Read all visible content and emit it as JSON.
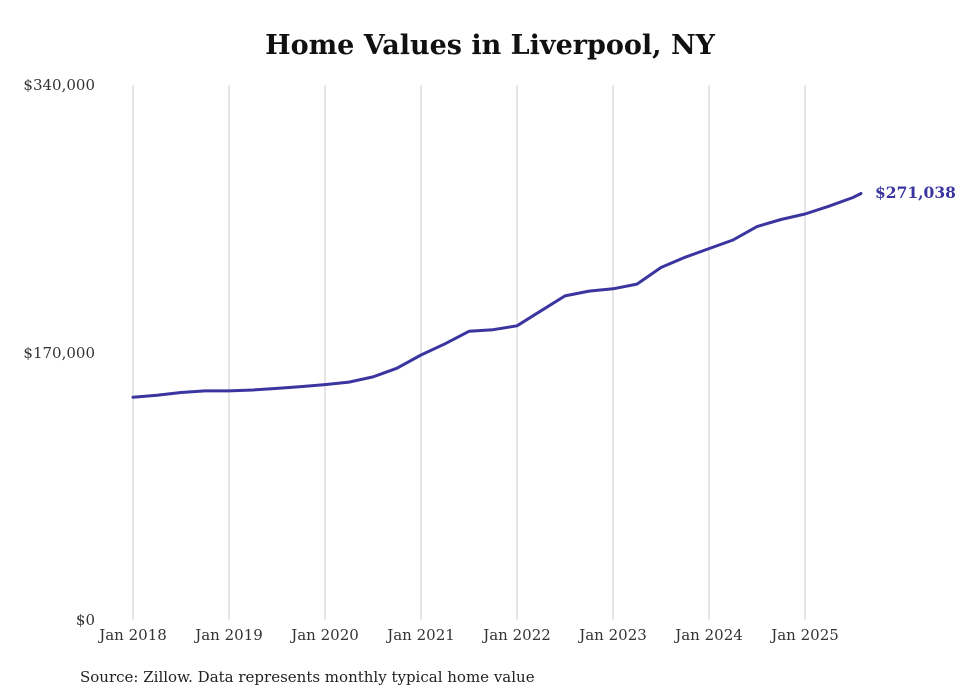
{
  "chart_data": {
    "type": "line",
    "title": "Home Values in Liverpool, NY",
    "series_name": "Monthly typical home value",
    "x": [
      "2018-01",
      "2018-04",
      "2018-07",
      "2018-10",
      "2019-01",
      "2019-04",
      "2019-07",
      "2019-10",
      "2020-01",
      "2020-04",
      "2020-07",
      "2020-10",
      "2021-01",
      "2021-04",
      "2021-07",
      "2021-10",
      "2022-01",
      "2022-04",
      "2022-07",
      "2022-10",
      "2023-01",
      "2023-04",
      "2023-07",
      "2023-10",
      "2024-01",
      "2024-04",
      "2024-07",
      "2024-10",
      "2025-01",
      "2025-04",
      "2025-07",
      "2025-08"
    ],
    "values": [
      141500,
      142800,
      144600,
      145600,
      145600,
      146200,
      147200,
      148300,
      149600,
      151200,
      154500,
      160000,
      168400,
      175500,
      183500,
      184500,
      187000,
      196500,
      206000,
      209000,
      210500,
      213500,
      224000,
      230500,
      236000,
      241500,
      250000,
      254500,
      258000,
      263000,
      268500,
      271038
    ],
    "ylim": [
      0,
      340000
    ],
    "yticks": [
      {
        "value": 0,
        "label": "$0"
      },
      {
        "value": 170000,
        "label": "$170,000"
      },
      {
        "value": 340000,
        "label": "$340,000"
      }
    ],
    "xticks": [
      {
        "date": "2018-01",
        "label": "Jan 2018"
      },
      {
        "date": "2019-01",
        "label": "Jan 2019"
      },
      {
        "date": "2020-01",
        "label": "Jan 2020"
      },
      {
        "date": "2021-01",
        "label": "Jan 2021"
      },
      {
        "date": "2022-01",
        "label": "Jan 2022"
      },
      {
        "date": "2023-01",
        "label": "Jan 2023"
      },
      {
        "date": "2024-01",
        "label": "Jan 2024"
      },
      {
        "date": "2025-01",
        "label": "Jan 2025"
      }
    ],
    "end_label": "$271,038",
    "grid": true,
    "legend": "none",
    "line_color": "#3b35a0",
    "grid_color": "#cccccc",
    "source_note": "Source: Zillow. Data represents monthly typical home value"
  }
}
